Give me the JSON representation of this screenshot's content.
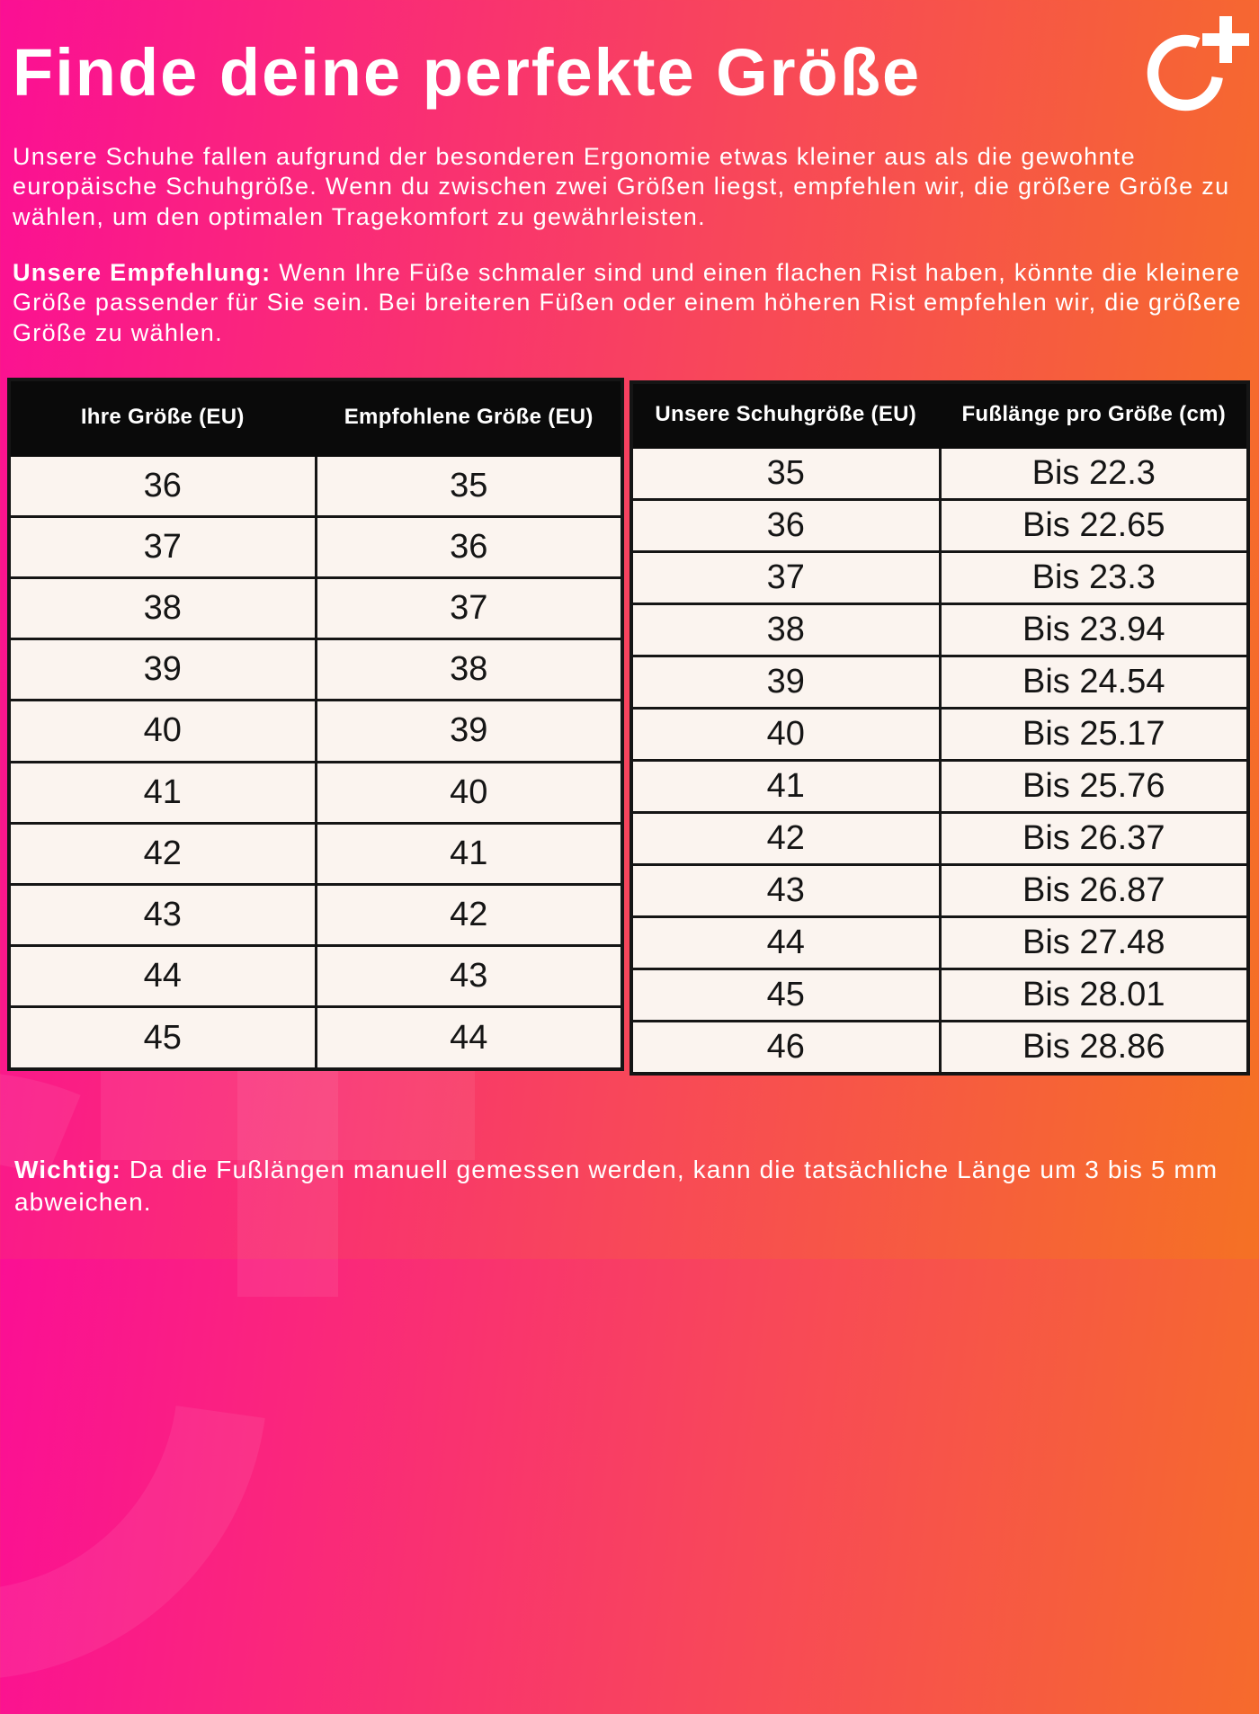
{
  "header": {
    "title": "Finde deine perfekte Größe"
  },
  "logo": {
    "name": "circle-plus-brand-logo"
  },
  "paragraphs": {
    "intro": "Unsere Schuhe fallen aufgrund der besonderen Ergonomie etwas kleiner aus als die gewohnte europäische Schuhgröße. Wenn du zwischen zwei Größen liegst, empfehlen wir, die größere Größe zu wählen, um den optimalen Tragekomfort zu gewährleisten.",
    "recommendation_label": "Unsere Empfehlung:",
    "recommendation_text": " Wenn Ihre Füße schmaler sind und einen flachen Rist haben, könnte die kleinere Größe passender für Sie sein. Bei breiteren Füßen oder einem höheren Rist empfehlen wir, die größere Größe zu wählen."
  },
  "size_table": {
    "headers": [
      "Ihre Größe (EU)",
      "Empfohlene Größe (EU)"
    ],
    "rows": [
      [
        "36",
        "35"
      ],
      [
        "37",
        "36"
      ],
      [
        "38",
        "37"
      ],
      [
        "39",
        "38"
      ],
      [
        "40",
        "39"
      ],
      [
        "41",
        "40"
      ],
      [
        "42",
        "41"
      ],
      [
        "43",
        "42"
      ],
      [
        "44",
        "43"
      ],
      [
        "45",
        "44"
      ]
    ]
  },
  "length_table": {
    "headers": [
      "Unsere Schuhgröße (EU)",
      "Fußlänge pro Größe (cm)"
    ],
    "rows": [
      [
        "35",
        "Bis 22.3"
      ],
      [
        "36",
        "Bis 22.65"
      ],
      [
        "37",
        "Bis 23.3"
      ],
      [
        "38",
        "Bis 23.94"
      ],
      [
        "39",
        "Bis 24.54"
      ],
      [
        "40",
        "Bis 25.17"
      ],
      [
        "41",
        "Bis 25.76"
      ],
      [
        "42",
        "Bis 26.37"
      ],
      [
        "43",
        "Bis 26.87"
      ],
      [
        "44",
        "Bis 27.48"
      ],
      [
        "45",
        "Bis 28.01"
      ],
      [
        "46",
        "Bis 28.86"
      ]
    ]
  },
  "note": {
    "label": "Wichtig:",
    "text": " Da die Fußlängen manuell gemessen werden, kann die tatsächliche Länge um 3 bis 5 mm abweichen."
  },
  "colors": {
    "grad_left": "#fb0f94",
    "grad_mid": "#f8455c",
    "grad_right": "#f57124",
    "table_bg": "#fbf4ef",
    "header_bg": "#0a0a0a",
    "ink": "#151515",
    "text_light": "#ffffff"
  }
}
